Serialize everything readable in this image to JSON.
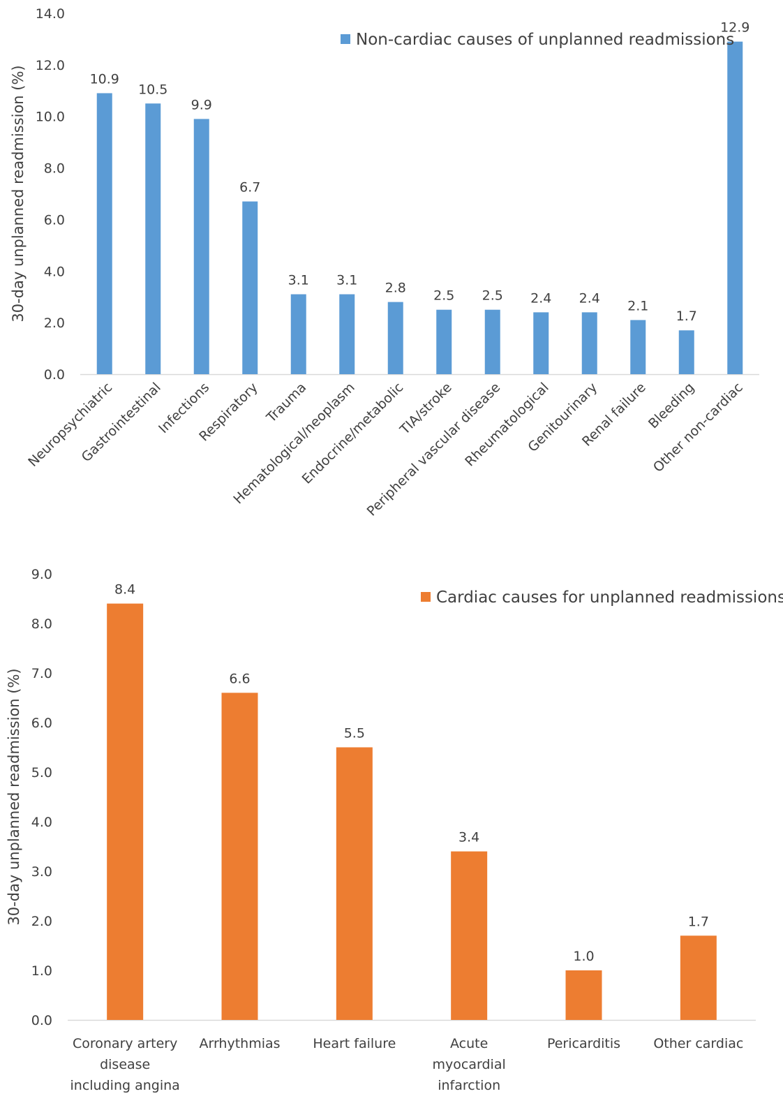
{
  "chart_data": [
    {
      "type": "bar",
      "ylabel": "30-day unplanned readmission (%)",
      "ylim": [
        0,
        14
      ],
      "yticks": [
        "0.0",
        "2.0",
        "4.0",
        "6.0",
        "8.0",
        "10.0",
        "12.0",
        "14.0"
      ],
      "grid": false,
      "legend_position": "top-right",
      "categories": [
        "Neuropsychiatric",
        "Gastrointestinal",
        "Infections",
        "Respiratory",
        "Trauma",
        "Hematological/neoplasm",
        "Endocrine/metabolic",
        "TIA/stroke",
        "Peripheral vascular disease",
        "Rheumatological",
        "Genitourinary",
        "Renal failure",
        "Bleeding",
        "Other non-cardiac"
      ],
      "series": [
        {
          "name": "Non-cardiac causes of unplanned readmissions",
          "color": "#5b9bd5",
          "values": [
            10.9,
            10.5,
            9.9,
            6.7,
            3.1,
            3.1,
            2.8,
            2.5,
            2.5,
            2.4,
            2.4,
            2.1,
            1.7,
            12.9
          ],
          "labels": [
            "10.9",
            "10.5",
            "9.9",
            "6.7",
            "3.1",
            "3.1",
            "2.8",
            "2.5",
            "2.5",
            "2.4",
            "2.4",
            "2.1",
            "1.7",
            "12.9"
          ]
        }
      ]
    },
    {
      "type": "bar",
      "ylabel": "30-day unplanned readmission (%)",
      "ylim": [
        0,
        9
      ],
      "yticks": [
        "0.0",
        "1.0",
        "2.0",
        "3.0",
        "4.0",
        "5.0",
        "6.0",
        "7.0",
        "8.0",
        "9.0"
      ],
      "grid": false,
      "legend_position": "top-right",
      "categories": [
        [
          "Coronary artery",
          "disease",
          "including angina"
        ],
        [
          "Arrhythmias"
        ],
        [
          "Heart failure"
        ],
        [
          "Acute",
          "myocardial",
          "infarction"
        ],
        [
          "Pericarditis"
        ],
        [
          "Other cardiac"
        ]
      ],
      "series": [
        {
          "name": "Cardiac causes for unplanned readmissions",
          "color": "#ed7d31",
          "values": [
            8.4,
            6.6,
            5.5,
            3.4,
            1.0,
            1.7
          ],
          "labels": [
            "8.4",
            "6.6",
            "5.5",
            "3.4",
            "1.0",
            "1.7"
          ]
        }
      ]
    }
  ]
}
